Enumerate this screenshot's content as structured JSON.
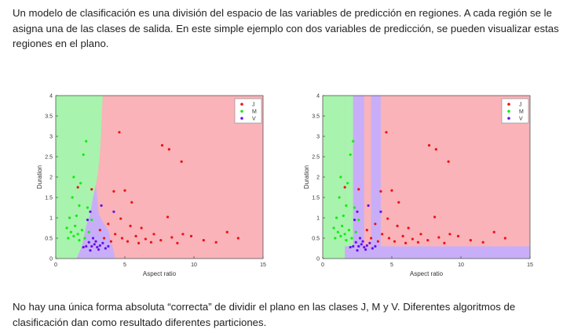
{
  "text": {
    "intro": "Un modelo de clasificación es una división del espacio de las variables de predicción en regiones. A cada región se le asigna una de las clases de salida. En este simple ejemplo con dos variables de predicción, se pueden visualizar estas regiones en el plano.",
    "outro": "No hay una única forma absoluta “correcta” de dividir el plano en las clases J, M y V. Diferentes algoritmos de clasificación dan como resultado diferentes particiones."
  },
  "colors": {
    "J_point": "#ee1111",
    "M_point": "#11ee11",
    "V_point": "#6611ee",
    "J_region": "#f9b3b9",
    "M_region": "#a8f3ad",
    "V_region": "#c8aef9"
  },
  "chart_data": [
    {
      "type": "scatter",
      "title": "",
      "xlabel": "Aspect ratio",
      "ylabel": "Duration",
      "xlim": [
        0,
        15
      ],
      "ylim": [
        0,
        4
      ],
      "xticks": [
        "0",
        "5",
        "10",
        "15"
      ],
      "yticks": [
        "0",
        "0.5",
        "1",
        "1.5",
        "2",
        "2.5",
        "3",
        "3.5",
        "4"
      ],
      "legend": {
        "placement": "top-right",
        "entries": [
          "J",
          "M",
          "V"
        ]
      },
      "regions": "smooth boundaries: M region left of ~x=3, V band near x=1.5–4.3 for low duration, J elsewhere",
      "series": [
        {
          "name": "J",
          "points": [
            [
              4.6,
              3.1
            ],
            [
              7.7,
              2.78
            ],
            [
              8.2,
              2.68
            ],
            [
              9.1,
              2.38
            ],
            [
              1.6,
              1.75
            ],
            [
              2.6,
              1.7
            ],
            [
              4.2,
              1.65
            ],
            [
              5.0,
              1.67
            ],
            [
              5.5,
              1.38
            ],
            [
              8.1,
              1.02
            ],
            [
              4.7,
              0.98
            ],
            [
              3.8,
              0.85
            ],
            [
              5.4,
              0.8
            ],
            [
              6.2,
              0.75
            ],
            [
              12.4,
              0.65
            ],
            [
              13.2,
              0.5
            ],
            [
              11.6,
              0.4
            ],
            [
              10.7,
              0.45
            ],
            [
              9.2,
              0.6
            ],
            [
              9.8,
              0.55
            ],
            [
              4.3,
              0.6
            ],
            [
              4.8,
              0.5
            ],
            [
              5.2,
              0.42
            ],
            [
              5.8,
              0.55
            ],
            [
              6.5,
              0.48
            ],
            [
              7.1,
              0.6
            ],
            [
              7.6,
              0.45
            ],
            [
              8.4,
              0.52
            ],
            [
              3.2,
              0.7
            ],
            [
              3.5,
              0.5
            ],
            [
              4.0,
              0.42
            ],
            [
              6.0,
              0.38
            ],
            [
              6.9,
              0.4
            ],
            [
              8.8,
              0.38
            ]
          ]
        },
        {
          "name": "M",
          "points": [
            [
              2.2,
              2.88
            ],
            [
              2.0,
              2.55
            ],
            [
              1.3,
              2.0
            ],
            [
              1.8,
              1.85
            ],
            [
              1.2,
              1.5
            ],
            [
              1.7,
              1.3
            ],
            [
              2.3,
              1.25
            ],
            [
              1.0,
              1.0
            ],
            [
              1.5,
              1.05
            ],
            [
              2.6,
              0.95
            ],
            [
              0.8,
              0.75
            ],
            [
              1.1,
              0.65
            ],
            [
              1.3,
              0.55
            ],
            [
              1.6,
              0.6
            ],
            [
              1.9,
              0.7
            ],
            [
              2.1,
              0.5
            ],
            [
              0.9,
              0.5
            ],
            [
              1.4,
              0.8
            ],
            [
              2.4,
              0.65
            ],
            [
              1.7,
              0.45
            ]
          ]
        },
        {
          "name": "V",
          "points": [
            [
              2.4,
              0.4
            ],
            [
              2.6,
              0.3
            ],
            [
              2.8,
              0.35
            ],
            [
              3.0,
              0.28
            ],
            [
              3.2,
              0.32
            ],
            [
              3.4,
              0.38
            ],
            [
              2.2,
              0.3
            ],
            [
              2.9,
              0.42
            ],
            [
              3.6,
              0.25
            ],
            [
              2.5,
              0.2
            ],
            [
              3.1,
              0.22
            ],
            [
              2.7,
              0.5
            ],
            [
              2.3,
              0.95
            ],
            [
              2.5,
              1.15
            ],
            [
              3.3,
              1.3
            ],
            [
              4.2,
              1.15
            ],
            [
              2.0,
              0.28
            ],
            [
              3.8,
              0.3
            ]
          ]
        }
      ]
    },
    {
      "type": "scatter",
      "title": "",
      "xlabel": "Aspect ratio",
      "ylabel": "Duration",
      "xlim": [
        0,
        15
      ],
      "ylim": [
        0,
        4
      ],
      "xticks": [
        "0",
        "5",
        "10",
        "15"
      ],
      "yticks": [
        "0",
        "0.5",
        "1",
        "1.5",
        "2",
        "2.5",
        "3",
        "3.5",
        "4"
      ],
      "legend": {
        "placement": "top-right",
        "entries": [
          "J",
          "M",
          "V"
        ]
      },
      "regions": "axis-aligned splits: M region x<2.1, V vertical bands x≈2.1–2.9 and 3.4–4.2, V bottom strip y<0.3 for x>4.2, J elsewhere",
      "series": [
        {
          "name": "J",
          "points": [
            [
              4.6,
              3.1
            ],
            [
              7.7,
              2.78
            ],
            [
              8.2,
              2.68
            ],
            [
              9.1,
              2.38
            ],
            [
              1.6,
              1.75
            ],
            [
              2.6,
              1.7
            ],
            [
              4.2,
              1.65
            ],
            [
              5.0,
              1.67
            ],
            [
              5.5,
              1.38
            ],
            [
              8.1,
              1.02
            ],
            [
              4.7,
              0.98
            ],
            [
              3.8,
              0.85
            ],
            [
              5.4,
              0.8
            ],
            [
              6.2,
              0.75
            ],
            [
              12.4,
              0.65
            ],
            [
              13.2,
              0.5
            ],
            [
              11.6,
              0.4
            ],
            [
              10.7,
              0.45
            ],
            [
              9.2,
              0.6
            ],
            [
              9.8,
              0.55
            ],
            [
              4.3,
              0.6
            ],
            [
              4.8,
              0.5
            ],
            [
              5.2,
              0.42
            ],
            [
              5.8,
              0.55
            ],
            [
              6.5,
              0.48
            ],
            [
              7.1,
              0.6
            ],
            [
              7.6,
              0.45
            ],
            [
              8.4,
              0.52
            ],
            [
              3.2,
              0.7
            ],
            [
              3.5,
              0.5
            ],
            [
              4.0,
              0.42
            ],
            [
              6.0,
              0.38
            ],
            [
              6.9,
              0.4
            ],
            [
              8.8,
              0.38
            ]
          ]
        },
        {
          "name": "M",
          "points": [
            [
              2.2,
              2.88
            ],
            [
              2.0,
              2.55
            ],
            [
              1.3,
              2.0
            ],
            [
              1.8,
              1.85
            ],
            [
              1.2,
              1.5
            ],
            [
              1.7,
              1.3
            ],
            [
              2.3,
              1.25
            ],
            [
              1.0,
              1.0
            ],
            [
              1.5,
              1.05
            ],
            [
              2.6,
              0.95
            ],
            [
              0.8,
              0.75
            ],
            [
              1.1,
              0.65
            ],
            [
              1.3,
              0.55
            ],
            [
              1.6,
              0.6
            ],
            [
              1.9,
              0.7
            ],
            [
              2.1,
              0.5
            ],
            [
              0.9,
              0.5
            ],
            [
              1.4,
              0.8
            ],
            [
              2.4,
              0.65
            ],
            [
              1.7,
              0.45
            ]
          ]
        },
        {
          "name": "V",
          "points": [
            [
              2.4,
              0.4
            ],
            [
              2.6,
              0.3
            ],
            [
              2.8,
              0.35
            ],
            [
              3.0,
              0.28
            ],
            [
              3.2,
              0.32
            ],
            [
              3.4,
              0.38
            ],
            [
              2.2,
              0.3
            ],
            [
              2.9,
              0.42
            ],
            [
              3.6,
              0.25
            ],
            [
              2.5,
              0.2
            ],
            [
              3.1,
              0.22
            ],
            [
              2.7,
              0.5
            ],
            [
              2.3,
              0.95
            ],
            [
              2.5,
              1.15
            ],
            [
              3.3,
              1.3
            ],
            [
              4.2,
              1.15
            ],
            [
              2.0,
              0.28
            ],
            [
              3.8,
              0.3
            ]
          ]
        }
      ]
    }
  ]
}
